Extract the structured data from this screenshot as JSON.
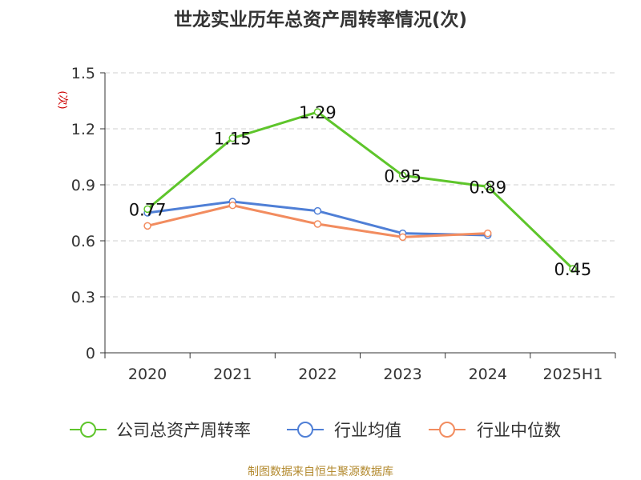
{
  "chart_data": {
    "type": "line",
    "title": "世龙实业历年总资产周转率情况(次)",
    "ylabel": "(次)",
    "xlabel": "",
    "categories": [
      "2020",
      "2021",
      "2022",
      "2023",
      "2024",
      "2025H1"
    ],
    "ylim": [
      0,
      1.5
    ],
    "yticks": [
      "0",
      "0.3",
      "0.6",
      "0.9",
      "1.2",
      "1.5"
    ],
    "grid": true,
    "legend_position": "bottom",
    "series": [
      {
        "name": "公司总资产周转率",
        "color": "#5ec52b",
        "values": [
          0.77,
          1.15,
          1.29,
          0.95,
          0.89,
          0.45
        ],
        "show_labels": true
      },
      {
        "name": "行业均值",
        "color": "#4f7fd6",
        "values": [
          0.75,
          0.81,
          0.76,
          0.64,
          0.63,
          null
        ],
        "show_labels": false
      },
      {
        "name": "行业中位数",
        "color": "#f28c5f",
        "values": [
          0.68,
          0.79,
          0.69,
          0.62,
          0.64,
          null
        ],
        "show_labels": false
      }
    ],
    "data_labels": [
      "0.77",
      "1.15",
      "1.29",
      "0.95",
      "0.89",
      "0.45"
    ]
  },
  "footer": {
    "credit": "制图数据来自恒生聚源数据库"
  }
}
